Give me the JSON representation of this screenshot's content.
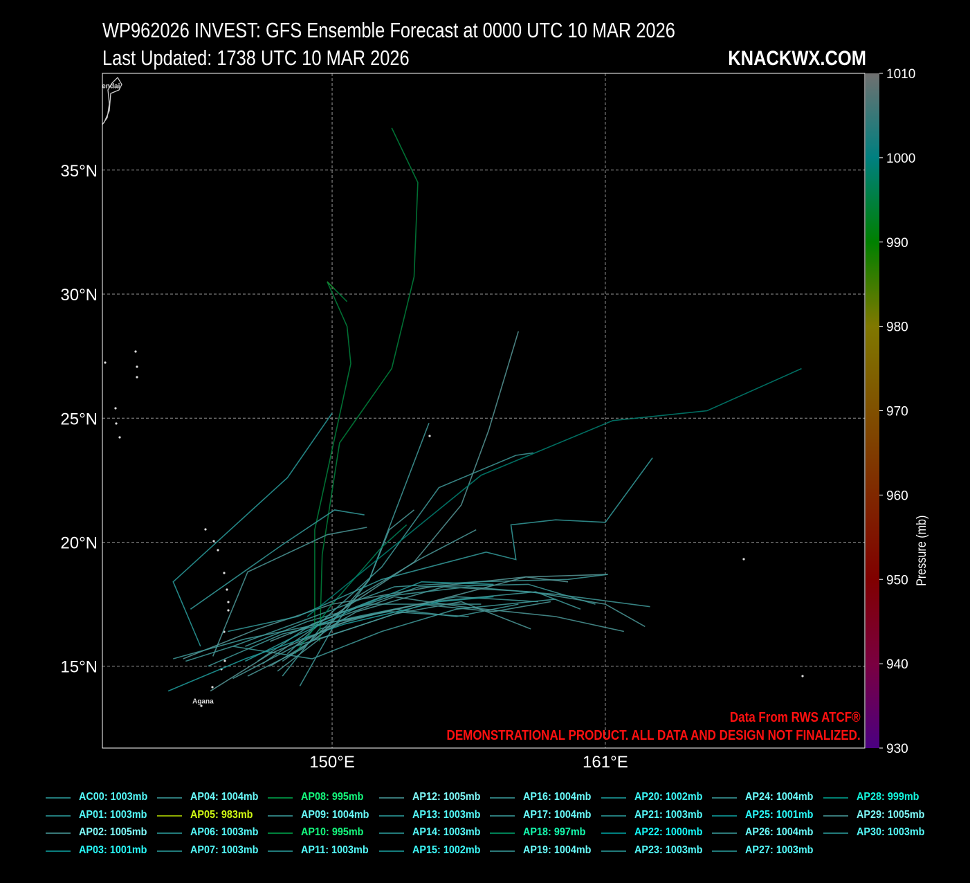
{
  "header": {
    "title": "WP962026 INVEST: GFS Ensemble Forecast at 0000 UTC 10 MAR 2026",
    "updated": "Last Updated: 1738 UTC 10 MAR 2026",
    "brand": "KNACKWX.COM"
  },
  "credit": {
    "line1": "Data From RWS ATCF®",
    "line2": "DEMONSTRATIONAL PRODUCT. ALL DATA AND DESIGN NOT FINALIZED."
  },
  "map": {
    "lon_range": [
      140.75,
      171.45
    ],
    "lat_range": [
      11.7,
      38.9
    ],
    "lon_ticks": [
      {
        "v": 150,
        "label": "150°E"
      },
      {
        "v": 161,
        "label": "161°E"
      }
    ],
    "lat_ticks": [
      {
        "v": 15,
        "label": "15°N"
      },
      {
        "v": 20,
        "label": "20°N"
      },
      {
        "v": 25,
        "label": "25°N"
      },
      {
        "v": 30,
        "label": "30°N"
      },
      {
        "v": 35,
        "label": "35°N"
      }
    ],
    "grid": true,
    "places": [
      {
        "name": "Sendai",
        "lon": 141.0,
        "lat": 38.3
      },
      {
        "name": "Agana",
        "lon": 144.8,
        "lat": 13.5
      }
    ]
  },
  "colorbar": {
    "label": "Pressure (mb)",
    "min": 930,
    "max": 1010,
    "ticks": [
      1010,
      1000,
      990,
      980,
      970,
      960,
      950,
      940,
      930
    ]
  },
  "members": [
    {
      "id": "AC00",
      "mb": 1003
    },
    {
      "id": "AP01",
      "mb": 1003
    },
    {
      "id": "AP02",
      "mb": 1005
    },
    {
      "id": "AP03",
      "mb": 1001
    },
    {
      "id": "AP04",
      "mb": 1004
    },
    {
      "id": "AP05",
      "mb": 983
    },
    {
      "id": "AP06",
      "mb": 1003
    },
    {
      "id": "AP07",
      "mb": 1003
    },
    {
      "id": "AP08",
      "mb": 995
    },
    {
      "id": "AP09",
      "mb": 1004
    },
    {
      "id": "AP10",
      "mb": 995
    },
    {
      "id": "AP11",
      "mb": 1003
    },
    {
      "id": "AP12",
      "mb": 1005
    },
    {
      "id": "AP13",
      "mb": 1003
    },
    {
      "id": "AP14",
      "mb": 1003
    },
    {
      "id": "AP15",
      "mb": 1002
    },
    {
      "id": "AP16",
      "mb": 1004
    },
    {
      "id": "AP17",
      "mb": 1004
    },
    {
      "id": "AP18",
      "mb": 997
    },
    {
      "id": "AP19",
      "mb": 1004
    },
    {
      "id": "AP20",
      "mb": 1002
    },
    {
      "id": "AP21",
      "mb": 1003
    },
    {
      "id": "AP22",
      "mb": 1000
    },
    {
      "id": "AP23",
      "mb": 1003
    },
    {
      "id": "AP24",
      "mb": 1004
    },
    {
      "id": "AP25",
      "mb": 1001
    },
    {
      "id": "AP26",
      "mb": 1004
    },
    {
      "id": "AP27",
      "mb": 1003
    },
    {
      "id": "AP28",
      "mb": 999
    },
    {
      "id": "AP29",
      "mb": 1005
    },
    {
      "id": "AP30",
      "mb": 1003
    }
  ],
  "legend_texts": [
    "AC00: 1003mb",
    "AP01: 1003mb",
    "AP02: 1005mb",
    "AP03: 1001mb",
    "AP04: 1004mb",
    "AP05: 983mb",
    "AP06: 1003mb",
    "AP07: 1003mb",
    "AP08: 995mb",
    "AP09: 1004mb",
    "AP10: 995mb",
    "AP11: 1003mb",
    "AP12: 1005mb",
    "AP13: 1003mb",
    "AP14: 1003mb",
    "AP15: 1002mb",
    "AP16: 1004mb",
    "AP17: 1004mb",
    "AP18: 997mb",
    "AP19: 1004mb",
    "AP20: 1002mb",
    "AP21: 1003mb",
    "AP22: 1000mb",
    "AP23: 1003mb",
    "AP24: 1004mb",
    "AP25: 1001mb",
    "AP26: 1004mb",
    "AP27: 1003mb",
    "AP28: 999mb",
    "AP29: 1005mb",
    "AP30: 1003mb"
  ],
  "chart_data": {
    "type": "line",
    "title": "WP962026 INVEST: GFS Ensemble Forecast at 0000 UTC 10 MAR 2026",
    "xlabel": "",
    "ylabel": "",
    "tracks": {
      "AC00": [
        [
          146.5,
          15.8
        ],
        [
          149,
          16.8
        ],
        [
          151.5,
          17.5
        ],
        [
          156,
          17.5
        ]
      ],
      "AP01": [
        [
          145,
          15.0
        ],
        [
          148,
          16.3
        ],
        [
          151,
          17.0
        ],
        [
          155,
          17.8
        ],
        [
          158.3,
          17.6
        ]
      ],
      "AP02": [
        [
          144,
          15.3
        ],
        [
          147,
          16.5
        ],
        [
          150,
          17.5
        ],
        [
          154,
          18.2
        ],
        [
          157.8,
          18.6
        ],
        [
          161.1,
          18.7
        ]
      ],
      "AP03": [
        [
          144.7,
          15.8
        ],
        [
          143.6,
          18.4
        ],
        [
          148.2,
          22.6
        ],
        [
          150,
          25.2
        ]
      ],
      "AP04": [
        [
          146,
          14.5
        ],
        [
          148.5,
          15.8
        ],
        [
          151,
          17.2
        ],
        [
          154.5,
          18.2
        ],
        [
          158,
          18.0
        ],
        [
          161,
          17.5
        ],
        [
          162.6,
          16.6
        ]
      ],
      "AP05": [
        [
          149.8,
          30.5
        ],
        [
          150.1,
          30.2
        ]
      ],
      "AP06": [
        [
          147,
          15.2
        ],
        [
          149.2,
          16.7
        ],
        [
          152,
          17.8
        ],
        [
          155.5,
          18.2
        ],
        [
          159,
          17.9
        ],
        [
          162.8,
          17.4
        ]
      ],
      "AP07": [
        [
          148,
          14.6
        ],
        [
          149.5,
          16.5
        ],
        [
          152.5,
          17.3
        ],
        [
          155,
          17.0
        ],
        [
          157.5,
          17.5
        ]
      ],
      "AP08": [
        [
          149.3,
          16.5
        ],
        [
          149.3,
          20.5
        ],
        [
          150.75,
          27.2
        ],
        [
          150.6,
          28.7
        ],
        [
          149.8,
          30.5
        ],
        [
          150.6,
          29.7
        ]
      ],
      "AP09": [
        [
          147.5,
          15.0
        ],
        [
          149.5,
          16.2
        ],
        [
          151.5,
          18.5
        ],
        [
          152.3,
          20.5
        ],
        [
          153.3,
          21.3
        ]
      ],
      "AP10": [
        [
          149.5,
          16.0
        ],
        [
          149.6,
          19.5
        ],
        [
          150.3,
          24.0
        ],
        [
          152.4,
          27.0
        ],
        [
          153.3,
          30.7
        ],
        [
          153.45,
          34.5
        ],
        [
          152.4,
          36.7
        ]
      ],
      "AP11": [
        [
          148.2,
          15.5
        ],
        [
          149.8,
          17.0
        ],
        [
          152,
          19.0
        ],
        [
          154.3,
          22.2
        ],
        [
          157.4,
          23.5
        ],
        [
          158.1,
          23.6
        ]
      ],
      "AP12": [
        [
          147.5,
          16.0
        ],
        [
          150,
          17.0
        ],
        [
          153.3,
          19.2
        ],
        [
          155.2,
          21.5
        ],
        [
          156.3,
          24.5
        ],
        [
          157.5,
          28.5
        ]
      ],
      "AP13": [
        [
          144.1,
          15.2
        ],
        [
          146,
          15.8
        ],
        [
          149,
          16.9
        ],
        [
          152.5,
          18.2
        ],
        [
          155.8,
          18.4
        ],
        [
          159.5,
          18.5
        ],
        [
          161.1,
          18.7
        ]
      ],
      "AP14": [
        [
          148.7,
          14.2
        ],
        [
          150,
          16.5
        ],
        [
          151.5,
          18.5
        ],
        [
          153.9,
          24.8
        ]
      ],
      "AP15": [
        [
          144.3,
          17.3
        ],
        [
          148,
          19.9
        ],
        [
          150.1,
          21.3
        ],
        [
          151.3,
          21.1
        ]
      ],
      "AP16": [
        [
          147.2,
          15.1
        ],
        [
          149.5,
          16.7
        ],
        [
          152.5,
          17.8
        ],
        [
          155.2,
          17.4
        ],
        [
          159,
          17.0
        ],
        [
          161.75,
          16.4
        ]
      ],
      "AP17": [
        [
          146.6,
          14.6
        ],
        [
          148.8,
          15.7
        ],
        [
          151,
          17.8
        ],
        [
          153.5,
          19.3
        ],
        [
          155.8,
          20.5
        ]
      ],
      "AP18": [
        [
          148.5,
          15.5
        ],
        [
          150,
          17.5
        ],
        [
          152,
          19.8
        ],
        [
          153,
          20.7
        ]
      ],
      "AP19": [
        [
          148,
          15.2
        ],
        [
          150.3,
          16.8
        ],
        [
          153.5,
          17.5
        ],
        [
          156.5,
          17.2
        ],
        [
          158.8,
          17.6
        ]
      ],
      "AP20": [
        [
          145.8,
          16.4
        ],
        [
          148.6,
          17.0
        ],
        [
          152,
          18.5
        ],
        [
          156.2,
          19.6
        ],
        [
          157.4,
          19.3
        ],
        [
          157.2,
          20.7
        ],
        [
          159,
          20.9
        ],
        [
          161,
          20.8
        ],
        [
          162.9,
          23.4
        ]
      ],
      "AP21": [
        [
          146,
          15.8
        ],
        [
          149.2,
          15.3
        ],
        [
          152,
          16.4
        ],
        [
          155,
          17.3
        ],
        [
          159,
          17.7
        ]
      ],
      "AP22": [
        [
          143.4,
          14.0
        ],
        [
          146.5,
          15.3
        ],
        [
          150.5,
          16.7
        ],
        [
          154.3,
          17.6
        ],
        [
          156.5,
          17.8
        ]
      ],
      "AP23": [
        [
          148.5,
          15.8
        ],
        [
          151,
          16.6
        ],
        [
          154,
          17.6
        ],
        [
          158.2,
          18.0
        ],
        [
          160,
          17.3
        ]
      ],
      "AP24": [
        [
          145.2,
          15.4
        ],
        [
          146.6,
          18.8
        ],
        [
          149.8,
          20.3
        ],
        [
          151.4,
          20.6
        ]
      ],
      "AP25": [
        [
          146.5,
          15.2
        ],
        [
          148.5,
          16.2
        ],
        [
          151.3,
          17.5
        ],
        [
          153.6,
          18.4
        ],
        [
          156.5,
          18.3
        ]
      ],
      "AP26": [
        [
          147.8,
          14.8
        ],
        [
          149.5,
          16.1
        ],
        [
          152.5,
          17.1
        ],
        [
          155.2,
          17.6
        ],
        [
          158,
          16.5
        ]
      ],
      "AP27": [
        [
          148.3,
          16.3
        ],
        [
          150.5,
          17.2
        ],
        [
          153.5,
          18.2
        ],
        [
          157.9,
          18.3
        ],
        [
          160.6,
          17.5
        ]
      ],
      "AP28": [
        [
          149.0,
          17.0
        ],
        [
          156.0,
          22.7
        ],
        [
          161.3,
          24.9
        ],
        [
          165.1,
          25.3
        ],
        [
          168.9,
          27.0
        ]
      ],
      "AP29": [
        [
          145.1,
          14.0
        ],
        [
          147.5,
          15.5
        ],
        [
          150.8,
          16.9
        ],
        [
          154,
          17.6
        ],
        [
          157.8,
          18.6
        ],
        [
          159.5,
          18.4
        ]
      ],
      "AP30": [
        [
          143.6,
          15.3
        ],
        [
          146.5,
          16.1
        ],
        [
          149,
          16.6
        ],
        [
          152.3,
          17.2
        ],
        [
          155.5,
          17.0
        ]
      ]
    }
  }
}
